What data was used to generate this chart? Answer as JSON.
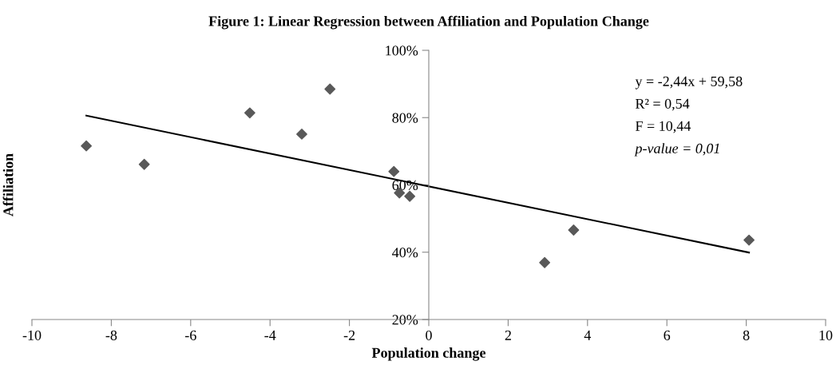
{
  "chart_data": {
    "type": "scatter",
    "title": "Figure 1: Linear Regression between Affiliation and Population Change",
    "xlabel": "Population change",
    "ylabel": "Affiliation",
    "annotations": [
      "y = -2,44x + 59,58",
      "R² = 0,54",
      "F = 10,44",
      "p-value = 0,01"
    ],
    "marker": "diamond",
    "grid": false,
    "legend": false,
    "xlim": [
      -10,
      10
    ],
    "xticks": [
      -10,
      -8,
      -6,
      -4,
      -2,
      0,
      2,
      4,
      6,
      8,
      10
    ],
    "ylim": [
      20,
      100
    ],
    "yticks": [
      {
        "value": 20,
        "label": "20%"
      },
      {
        "value": 40,
        "label": "40%"
      },
      {
        "value": 60,
        "label": "60%"
      },
      {
        "value": 80,
        "label": "80%"
      },
      {
        "value": 100,
        "label": "100%"
      }
    ],
    "series": [
      {
        "color": "#595959",
        "x": [
          -8.63,
          -7.17,
          -4.51,
          -3.2,
          -2.49,
          -0.88,
          -0.74,
          -0.48,
          2.92,
          3.65,
          8.07
        ],
        "values": [
          71.6,
          66.1,
          81.4,
          75.1,
          88.5,
          64.0,
          57.6,
          56.6,
          36.9,
          46.6,
          43.6
        ]
      },
      {
        "type": "line",
        "color": "#000000",
        "marker": "none",
        "x": [
          -8.63,
          8.07
        ],
        "values": [
          80.6,
          39.9
        ]
      }
    ]
  }
}
